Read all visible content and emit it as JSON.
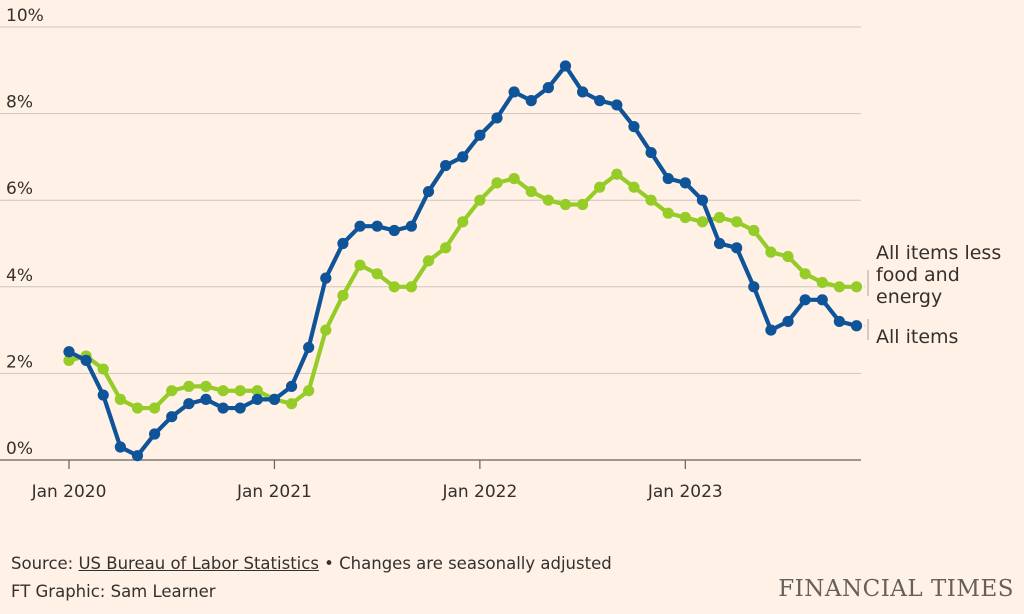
{
  "chart_data": {
    "type": "line",
    "title": "",
    "xlabel": "",
    "ylabel": "",
    "ylim": [
      0,
      10
    ],
    "yticks": [
      "0%",
      "2%",
      "4%",
      "6%",
      "8%",
      "10%"
    ],
    "yticks_values": [
      0,
      2,
      4,
      6,
      8,
      10
    ],
    "xticks": [
      "Jan 2020",
      "Jan 2021",
      "Jan 2022",
      "Jan 2023"
    ],
    "xticks_index": [
      0,
      12,
      24,
      36
    ],
    "grid": true,
    "legend": "right-inline",
    "x": [
      "Jan 2020",
      "Feb 2020",
      "Mar 2020",
      "Apr 2020",
      "May 2020",
      "Jun 2020",
      "Jul 2020",
      "Aug 2020",
      "Sep 2020",
      "Oct 2020",
      "Nov 2020",
      "Dec 2020",
      "Jan 2021",
      "Feb 2021",
      "Mar 2021",
      "Apr 2021",
      "May 2021",
      "Jun 2021",
      "Jul 2021",
      "Aug 2021",
      "Sep 2021",
      "Oct 2021",
      "Nov 2021",
      "Dec 2021",
      "Jan 2022",
      "Feb 2022",
      "Mar 2022",
      "Apr 2022",
      "May 2022",
      "Jun 2022",
      "Jul 2022",
      "Aug 2022",
      "Sep 2022",
      "Oct 2022",
      "Nov 2022",
      "Dec 2022",
      "Jan 2023",
      "Feb 2023",
      "Mar 2023",
      "Apr 2023",
      "May 2023",
      "Jun 2023",
      "Jul 2023",
      "Aug 2023",
      "Sep 2023",
      "Oct 2023",
      "Nov 2023"
    ],
    "series": [
      {
        "name": "All items",
        "label_lines": [
          "All items"
        ],
        "color": "#0F5499",
        "values": [
          2.5,
          2.3,
          1.5,
          0.3,
          0.1,
          0.6,
          1.0,
          1.3,
          1.4,
          1.2,
          1.2,
          1.4,
          1.4,
          1.7,
          2.6,
          4.2,
          5.0,
          5.4,
          5.4,
          5.3,
          5.4,
          6.2,
          6.8,
          7.0,
          7.5,
          7.9,
          8.5,
          8.3,
          8.6,
          9.1,
          8.5,
          8.3,
          8.2,
          7.7,
          7.1,
          6.5,
          6.4,
          6.0,
          5.0,
          4.9,
          4.0,
          3.0,
          3.2,
          3.7,
          3.7,
          3.2,
          3.1
        ]
      },
      {
        "name": "All items less food and energy",
        "label_lines": [
          "All items less",
          "food and",
          "energy"
        ],
        "color": "#96CC28",
        "values": [
          2.3,
          2.4,
          2.1,
          1.4,
          1.2,
          1.2,
          1.6,
          1.7,
          1.7,
          1.6,
          1.6,
          1.6,
          1.4,
          1.3,
          1.6,
          3.0,
          3.8,
          4.5,
          4.3,
          4.0,
          4.0,
          4.6,
          4.9,
          5.5,
          6.0,
          6.4,
          6.5,
          6.2,
          6.0,
          5.9,
          5.9,
          6.3,
          6.6,
          6.3,
          6.0,
          5.7,
          5.6,
          5.5,
          5.6,
          5.5,
          5.3,
          4.8,
          4.7,
          4.3,
          4.1,
          4.0,
          4.0
        ]
      }
    ]
  },
  "footer": {
    "source_prefix": "Source: ",
    "source_link": "US Bureau of Labor Statistics",
    "source_suffix": " • Changes are seasonally adjusted",
    "credit": "FT Graphic: Sam Learner"
  },
  "brand": "FINANCIAL TIMES"
}
